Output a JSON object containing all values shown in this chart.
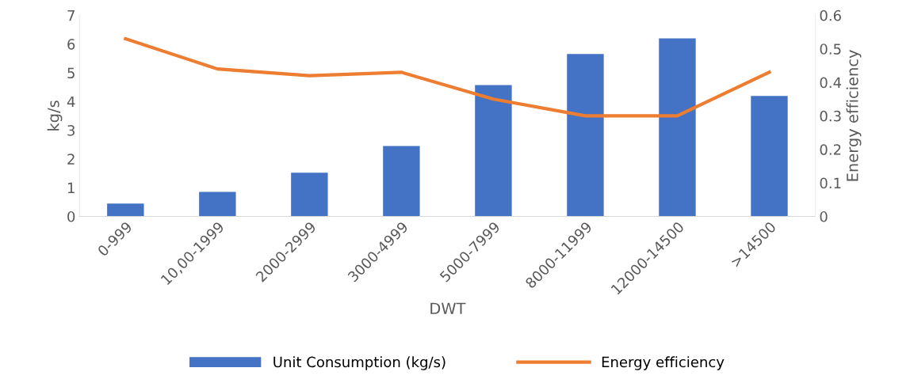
{
  "chart_data": {
    "type": "bar",
    "xlabel": "DWT",
    "ylabel": "kg/s",
    "y2label": "Energy efficiency",
    "categories": [
      "0-999",
      "10,00-1999",
      "2000-2999",
      "3000-4999",
      "5000-7999",
      "8000-11999",
      "12000-14500",
      ">14500"
    ],
    "series": [
      {
        "name": "Unit Consumption (kg/s)",
        "color": "#4472c4",
        "values": [
          0.45,
          0.85,
          1.52,
          2.45,
          4.57,
          5.65,
          6.2,
          4.19
        ]
      },
      {
        "name": "Energy efficiency",
        "type": "line",
        "axis": "y2",
        "color": "#ed7d31",
        "values": [
          0.53,
          0.44,
          0.42,
          0.43,
          0.35,
          0.3,
          0.3,
          0.43
        ]
      }
    ],
    "ylim": [
      0,
      7
    ],
    "yticks": [
      0,
      1,
      2,
      3,
      4,
      5,
      6,
      7
    ],
    "y2lim": [
      0,
      0.6
    ],
    "y2ticks": [
      {
        "value": 0,
        "label": "0"
      },
      0.1,
      0.2,
      0.3,
      0.4,
      0.5,
      0.6
    ],
    "grid": false,
    "legend": "bottom",
    "marker": "none",
    "line_style": "solid"
  }
}
